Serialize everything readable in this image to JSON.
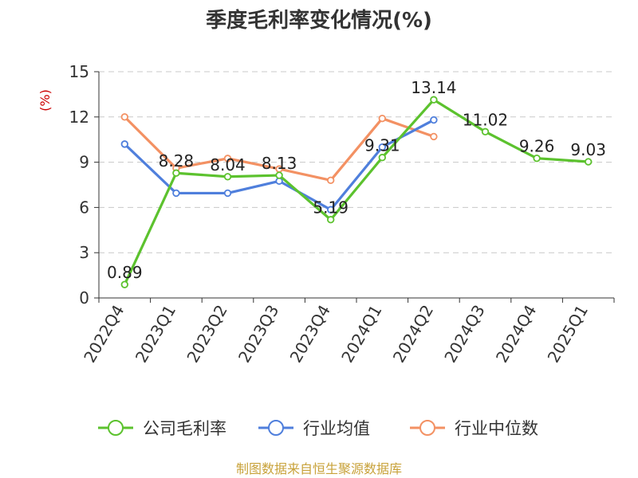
{
  "chart_data": {
    "type": "line",
    "title": "季度毛利率变化情况(%)",
    "ylabel": "(%)",
    "categories": [
      "2022Q4",
      "2023Q1",
      "2023Q2",
      "2023Q3",
      "2023Q4",
      "2024Q1",
      "2024Q2",
      "2024Q3",
      "2024Q4",
      "2025Q1"
    ],
    "yticks": [
      0,
      3,
      6,
      9,
      12,
      15
    ],
    "ylim": [
      0,
      15
    ],
    "grid": true,
    "legend_position": "bottom",
    "series": [
      {
        "name": "公司毛利率",
        "color": "#5cc22e",
        "values": [
          0.89,
          8.28,
          8.04,
          8.13,
          5.19,
          9.31,
          13.14,
          11.02,
          9.26,
          9.03
        ],
        "labels": [
          "0.89",
          "8.28",
          "8.04",
          "8.13",
          "5.19",
          "9.31",
          "13.14",
          "11.02",
          "9.26",
          "9.03"
        ]
      },
      {
        "name": "行业均值",
        "color": "#4f7fdc",
        "values": [
          10.2,
          6.95,
          6.95,
          7.75,
          5.85,
          10.0,
          11.8,
          null,
          null,
          null
        ]
      },
      {
        "name": "行业中位数",
        "color": "#f39163",
        "values": [
          12.0,
          8.6,
          9.25,
          8.55,
          7.8,
          11.9,
          10.7,
          null,
          null,
          null
        ]
      }
    ],
    "source": "制图数据来自恒生聚源数据库"
  }
}
